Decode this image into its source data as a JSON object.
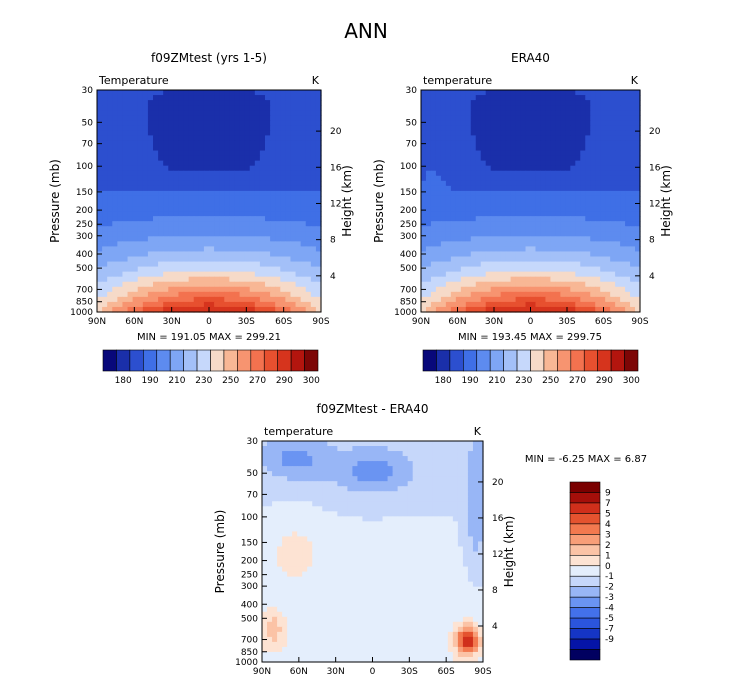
{
  "figure": {
    "title": "ANN"
  },
  "colors": {
    "temp_scale": [
      "#08087a",
      "#1a2faa",
      "#2c4fcf",
      "#3f6fe6",
      "#5d8bef",
      "#7ea6f5",
      "#a3c0f8",
      "#c6d8fb",
      "#f6dac8",
      "#f8b795",
      "#f79470",
      "#f3724f",
      "#e7502f",
      "#d6341d",
      "#b3150e",
      "#7d0606"
    ],
    "diff_scale": [
      "#010060",
      "#0514a8",
      "#1535c6",
      "#2b55dd",
      "#4371ea",
      "#6a94f2",
      "#98b6f6",
      "#c6d7fa",
      "#e4eefc",
      "#fde3d3",
      "#fbc3a6",
      "#f89e78",
      "#f2794f",
      "#e4532f",
      "#d02f1b",
      "#a50f0a",
      "#7a0000"
    ]
  },
  "chart_data": [
    {
      "id": "panel_model",
      "type": "heatmap",
      "title": "f09ZMtest (yrs 1-5)",
      "variable_label": "Temperature",
      "units": "K",
      "xlabel": "",
      "ylabel": "Pressure (mb)",
      "ylabel_right": "Height (km)",
      "x_ticks": [
        "90N",
        "60N",
        "30N",
        "0",
        "30S",
        "60S",
        "90S"
      ],
      "y_ticks": [
        30,
        50,
        70,
        100,
        150,
        200,
        250,
        300,
        400,
        500,
        700,
        850,
        1000
      ],
      "y_right_ticks": [
        20,
        16,
        12,
        8,
        4
      ],
      "y_scale": "log",
      "ylim": [
        1000,
        30
      ],
      "stats_text": "MIN = 191.05   MAX = 299.21",
      "min": 191.05,
      "max": 299.21
    },
    {
      "id": "panel_obs",
      "type": "heatmap",
      "title": "ERA40",
      "variable_label": "temperature",
      "units": "K",
      "xlabel": "",
      "ylabel": "Pressure (mb)",
      "ylabel_right": "Height (km)",
      "x_ticks": [
        "90N",
        "60N",
        "30N",
        "0",
        "30S",
        "60S",
        "90S"
      ],
      "y_ticks": [
        30,
        50,
        70,
        100,
        150,
        200,
        250,
        300,
        400,
        500,
        700,
        850,
        1000
      ],
      "y_right_ticks": [
        20,
        16,
        12,
        8,
        4
      ],
      "y_scale": "log",
      "ylim": [
        1000,
        30
      ],
      "stats_text": "MIN = 193.45   MAX = 299.75",
      "min": 193.45,
      "max": 299.75
    },
    {
      "id": "panel_diff",
      "type": "heatmap",
      "title": "f09ZMtest - ERA40",
      "variable_label": "temperature",
      "units": "K",
      "xlabel": "",
      "ylabel": "Pressure (mb)",
      "ylabel_right": "Height (km)",
      "x_ticks": [
        "90N",
        "60N",
        "30N",
        "0",
        "30S",
        "60S",
        "90S"
      ],
      "y_ticks": [
        30,
        50,
        70,
        100,
        150,
        200,
        250,
        300,
        400,
        500,
        700,
        850,
        1000
      ],
      "y_right_ticks": [
        20,
        16,
        12,
        8,
        4
      ],
      "y_scale": "log",
      "ylim": [
        1000,
        30
      ],
      "stats_text": "MIN =   -6.25   MAX =    6.87",
      "min": -6.25,
      "max": 6.87
    }
  ],
  "colorbars": {
    "temp_labels": [
      "180",
      "190",
      "210",
      "230",
      "250",
      "270",
      "290",
      "300"
    ],
    "diff_labels": [
      "9",
      "7",
      "5",
      "4",
      "3",
      "2",
      "1",
      "0",
      "-1",
      "-2",
      "-3",
      "-4",
      "-5",
      "-7",
      "-9"
    ]
  }
}
